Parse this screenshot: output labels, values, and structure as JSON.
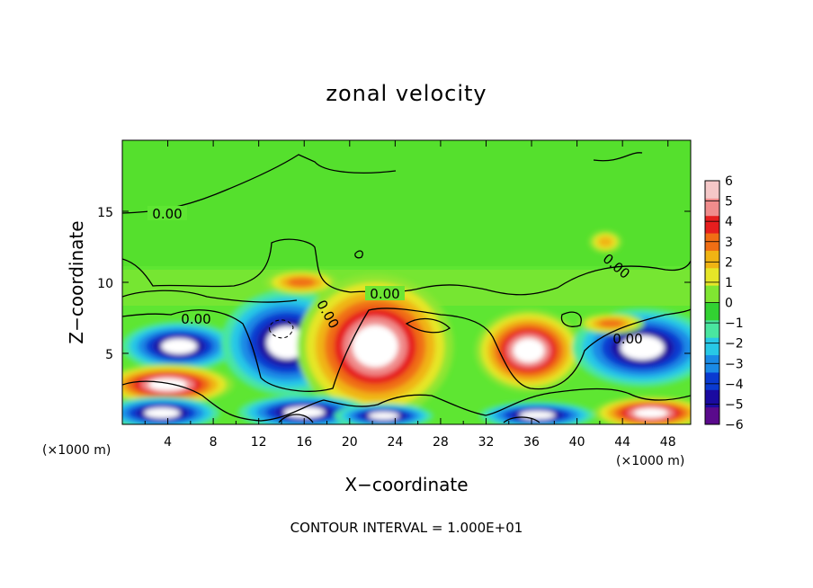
{
  "chart_data": {
    "type": "heatmap",
    "title": "zonal velocity",
    "xlabel": "X−coordinate",
    "ylabel": "Z−coordinate",
    "x_unit": "(×1000 m)",
    "x_ticks": [
      "4",
      "8",
      "12",
      "16",
      "20",
      "24",
      "28",
      "32",
      "36",
      "40",
      "44",
      "48"
    ],
    "x_tick_values": [
      4,
      8,
      12,
      16,
      20,
      24,
      28,
      32,
      36,
      40,
      44,
      48
    ],
    "y_ticks": [
      "5",
      "10",
      "15"
    ],
    "y_tick_values": [
      5,
      10,
      15
    ],
    "xlim": [
      0,
      50
    ],
    "ylim": [
      0,
      20
    ],
    "colorbar": {
      "ticks": [
        "6",
        "5",
        "4",
        "3",
        "2",
        "1",
        "0",
        "−1",
        "−2",
        "−3",
        "−4",
        "−5",
        "−6"
      ],
      "tick_values": [
        6,
        5,
        4,
        3,
        2,
        1,
        0,
        -1,
        -2,
        -3,
        -4,
        -5,
        -6
      ],
      "colors": [
        "#5a0a8c",
        "#1a0aa0",
        "#0a3ad0",
        "#1a8ae6",
        "#28c8e6",
        "#4ae6a0",
        "#32d232",
        "#80e632",
        "#e6e628",
        "#f0b414",
        "#f06e14",
        "#e61e1e",
        "#f08c8c",
        "#f5c8c8"
      ],
      "range": [
        -6,
        6
      ]
    },
    "contour_labels": [
      "0.00",
      "0.00",
      "0.00",
      "0.00",
      "0.00"
    ],
    "contour_interval_text": "CONTOUR INTERVAL = 1.000E+01",
    "regions": [
      {
        "kind": "neg",
        "x": [
          1.5,
          8.5
        ],
        "z": [
          4.3,
          6.7
        ],
        "peak": -8
      },
      {
        "kind": "pos",
        "x": [
          0,
          8
        ],
        "z": [
          1.8,
          3.8
        ],
        "peak": 8
      },
      {
        "kind": "neg",
        "x": [
          0,
          7
        ],
        "z": [
          0,
          1.6
        ],
        "peak": -6
      },
      {
        "kind": "neg",
        "x": [
          10.5,
          18.5
        ],
        "z": [
          3.2,
          8.3
        ],
        "peak": -8
      },
      {
        "kind": "pos",
        "x": [
          17.5,
          27
        ],
        "z": [
          2,
          9
        ],
        "peak": 8
      },
      {
        "kind": "neg",
        "x": [
          12,
          20
        ],
        "z": [
          0,
          1.7
        ],
        "peak": -6
      },
      {
        "kind": "neg",
        "x": [
          20,
          26
        ],
        "z": [
          0,
          1.2
        ],
        "peak": -6
      },
      {
        "kind": "pos",
        "x": [
          32.5,
          39
        ],
        "z": [
          3.2,
          7.2
        ],
        "peak": 8
      },
      {
        "kind": "neg",
        "x": [
          33,
          40
        ],
        "z": [
          0,
          1.3
        ],
        "peak": -6
      },
      {
        "kind": "neg",
        "x": [
          41.5,
          50
        ],
        "z": [
          3.5,
          7.3
        ],
        "peak": -8
      },
      {
        "kind": "pos",
        "x": [
          43,
          50
        ],
        "z": [
          0,
          1.6
        ],
        "peak": 8
      },
      {
        "kind": "pos",
        "x": [
          13.5,
          18
        ],
        "z": [
          9.4,
          10.6
        ],
        "peak": 4
      },
      {
        "kind": "pos",
        "x": [
          41.5,
          43.5
        ],
        "z": [
          12.3,
          13.4
        ],
        "peak": 3
      },
      {
        "kind": "pos",
        "x": [
          41,
          45
        ],
        "z": [
          6.6,
          7.6
        ],
        "peak": 4
      }
    ]
  }
}
